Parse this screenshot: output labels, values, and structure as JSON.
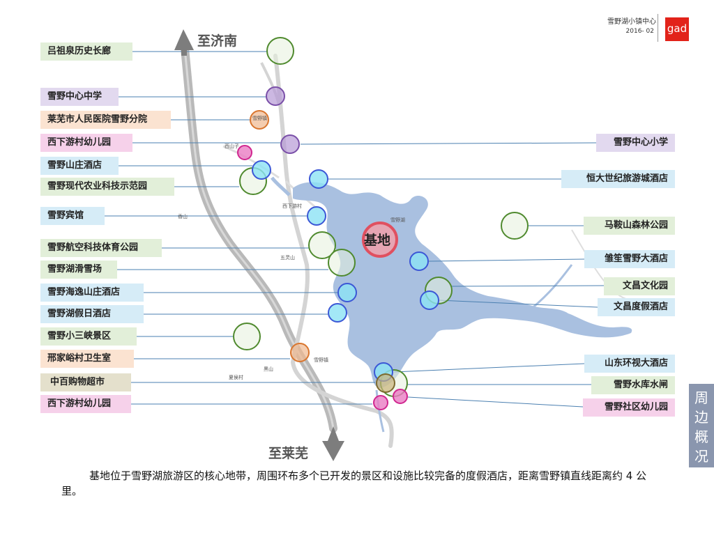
{
  "header": {
    "title": "雪野湖小镇中心",
    "date": "2016- 02",
    "logo": "gad"
  },
  "directions": {
    "north": "至济南",
    "south": "至莱芜"
  },
  "site": {
    "label": "基地"
  },
  "side_tab": {
    "chars": [
      "周",
      "边",
      "概",
      "况"
    ]
  },
  "caption": "基地位于雪野湖旅游区的核心地带，周围环布多个已开发的景区和设施比较完备的度假酒店，距离雪野镇直线距离约 4 公里。",
  "labels_left": [
    {
      "text": "吕祖泉历史长廊",
      "color": "green"
    },
    {
      "text": "雪野中心中学",
      "color": "purple"
    },
    {
      "text": "莱芜市人民医院雪野分院",
      "color": "orange"
    },
    {
      "text": "西下游村幼儿园",
      "color": "pink"
    },
    {
      "text": "雪野山庄酒店",
      "color": "blue"
    },
    {
      "text": "雪野现代农业科技示范园",
      "color": "green"
    },
    {
      "text": "雪野宾馆",
      "color": "blue"
    },
    {
      "text": "雪野航空科技体育公园",
      "color": "green"
    },
    {
      "text": "雪野湖滑雪场",
      "color": "green"
    },
    {
      "text": "雪野海逸山庄酒店",
      "color": "blue"
    },
    {
      "text": "雪野湖假日酒店",
      "color": "blue"
    },
    {
      "text": "雪野小三峡景区",
      "color": "green"
    },
    {
      "text": "邢家峪村卫生室",
      "color": "orange"
    },
    {
      "text": "中百购物超市",
      "color": "tan"
    },
    {
      "text": "西下游村幼儿园",
      "color": "pink"
    }
  ],
  "labels_right": [
    {
      "text": "雪野中心小学",
      "color": "purple"
    },
    {
      "text": "恒大世纪旅游城酒店",
      "color": "blue"
    },
    {
      "text": "马鞍山森林公园",
      "color": "green"
    },
    {
      "text": "雏笙雪野大酒店",
      "color": "blue"
    },
    {
      "text": "文昌文化园",
      "color": "green"
    },
    {
      "text": "文昌度假酒店",
      "color": "blue"
    },
    {
      "text": "山东环视大酒店",
      "color": "blue"
    },
    {
      "text": "雪野水库水闸",
      "color": "green"
    },
    {
      "text": "雪野社区幼儿园",
      "color": "pink"
    }
  ],
  "map_texts": [
    "雪野湖",
    "雪野镇",
    "五灵山",
    "香山",
    "黑山",
    "夏侯村",
    "西下游村",
    "西山子",
    "雪野镇"
  ],
  "colors": {
    "lake": "#a9c0e0",
    "green": "#4f8a2e",
    "purple": "#7a4fa8",
    "orange": "#d9762f",
    "pink": "#d0268f",
    "blue": "#3b57d6",
    "site": "#e05060",
    "connector": "#4a7fb0"
  }
}
